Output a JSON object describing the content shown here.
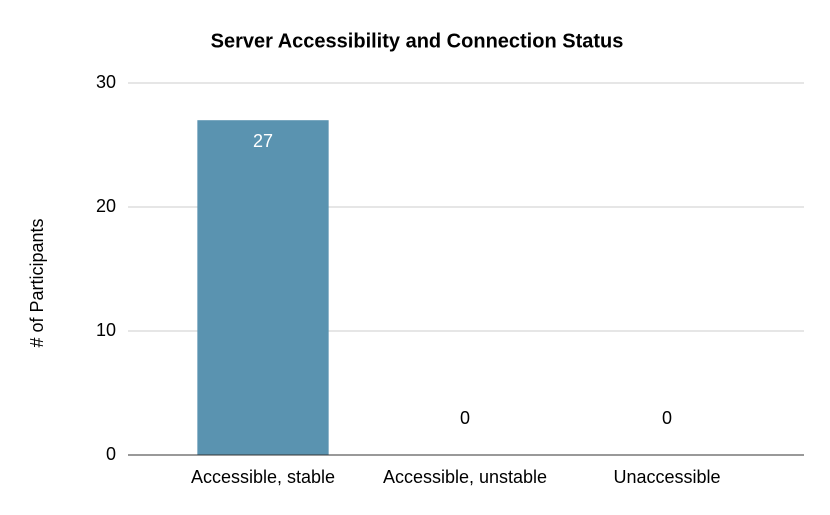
{
  "chart_data": {
    "type": "bar",
    "title": "Server Accessibility and Connection Status",
    "y_label": "# of Participants",
    "categories": [
      "Accessible, stable",
      "Accessible, unstable",
      "Unaccessible"
    ],
    "values": [
      27,
      0,
      0
    ],
    "color": "#5a93b0",
    "ylim": [
      0,
      30
    ],
    "yticks": [
      0,
      10,
      20,
      30
    ],
    "grid": true
  }
}
